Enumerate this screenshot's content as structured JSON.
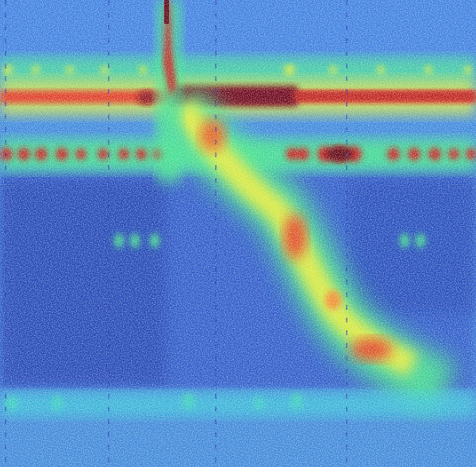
{
  "image": {
    "kind": "spectrogram-heatmap",
    "colormap": [
      "#1a2aa8",
      "#2f6fe0",
      "#33c8d8",
      "#3ee08a",
      "#d8e83a",
      "#f08a2a",
      "#d8201c",
      "#5a0010"
    ],
    "background_color": "#3a78d6",
    "features": [
      "horizontal-band-upper",
      "horizontal-band-strong",
      "horizontal-band-dotted",
      "diagonal-sweep",
      "vertical-spike"
    ],
    "noise": "speckle"
  }
}
